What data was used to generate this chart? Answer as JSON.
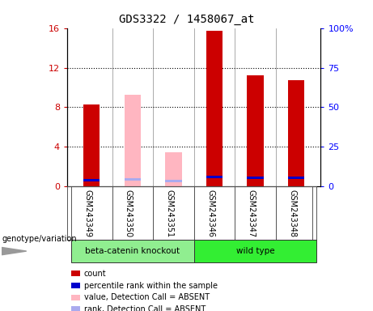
{
  "title": "GDS3322 / 1458067_at",
  "samples": [
    "GSM243349",
    "GSM243350",
    "GSM243351",
    "GSM243346",
    "GSM243347",
    "GSM243348"
  ],
  "groups": [
    "beta-catenin knockout",
    "beta-catenin knockout",
    "beta-catenin knockout",
    "wild type",
    "wild type",
    "wild type"
  ],
  "group_colors": {
    "beta-catenin knockout": "#90EE90",
    "wild type": "#33EE33"
  },
  "ylim_left": [
    0,
    16
  ],
  "ylim_right": [
    0,
    100
  ],
  "yticks_left": [
    0,
    4,
    8,
    12,
    16
  ],
  "yticks_right": [
    0,
    25,
    50,
    75,
    100
  ],
  "ytick_labels_left": [
    "0",
    "4",
    "8",
    "12",
    "16"
  ],
  "ytick_labels_right": [
    "0",
    "25",
    "50",
    "75",
    "100%"
  ],
  "count_color": "#CC0000",
  "count_absent_color": "#FFB6C1",
  "rank_color": "#0000CC",
  "rank_absent_color": "#AAAAEE",
  "count_values": [
    8.3,
    null,
    null,
    15.7,
    11.2,
    10.7
  ],
  "count_absent_values": [
    null,
    9.3,
    3.5,
    null,
    null,
    null
  ],
  "rank_values": [
    4.1,
    null,
    null,
    6.2,
    5.8,
    5.5
  ],
  "rank_absent_values": [
    null,
    4.5,
    3.3,
    null,
    null,
    null
  ],
  "bg_color": "#DCDCDC",
  "plot_bg": "#FFFFFF",
  "legend_items": [
    {
      "label": "count",
      "color": "#CC0000"
    },
    {
      "label": "percentile rank within the sample",
      "color": "#0000CC"
    },
    {
      "label": "value, Detection Call = ABSENT",
      "color": "#FFB6C1"
    },
    {
      "label": "rank, Detection Call = ABSENT",
      "color": "#AAAAEE"
    }
  ],
  "group_label": "genotype/variation"
}
